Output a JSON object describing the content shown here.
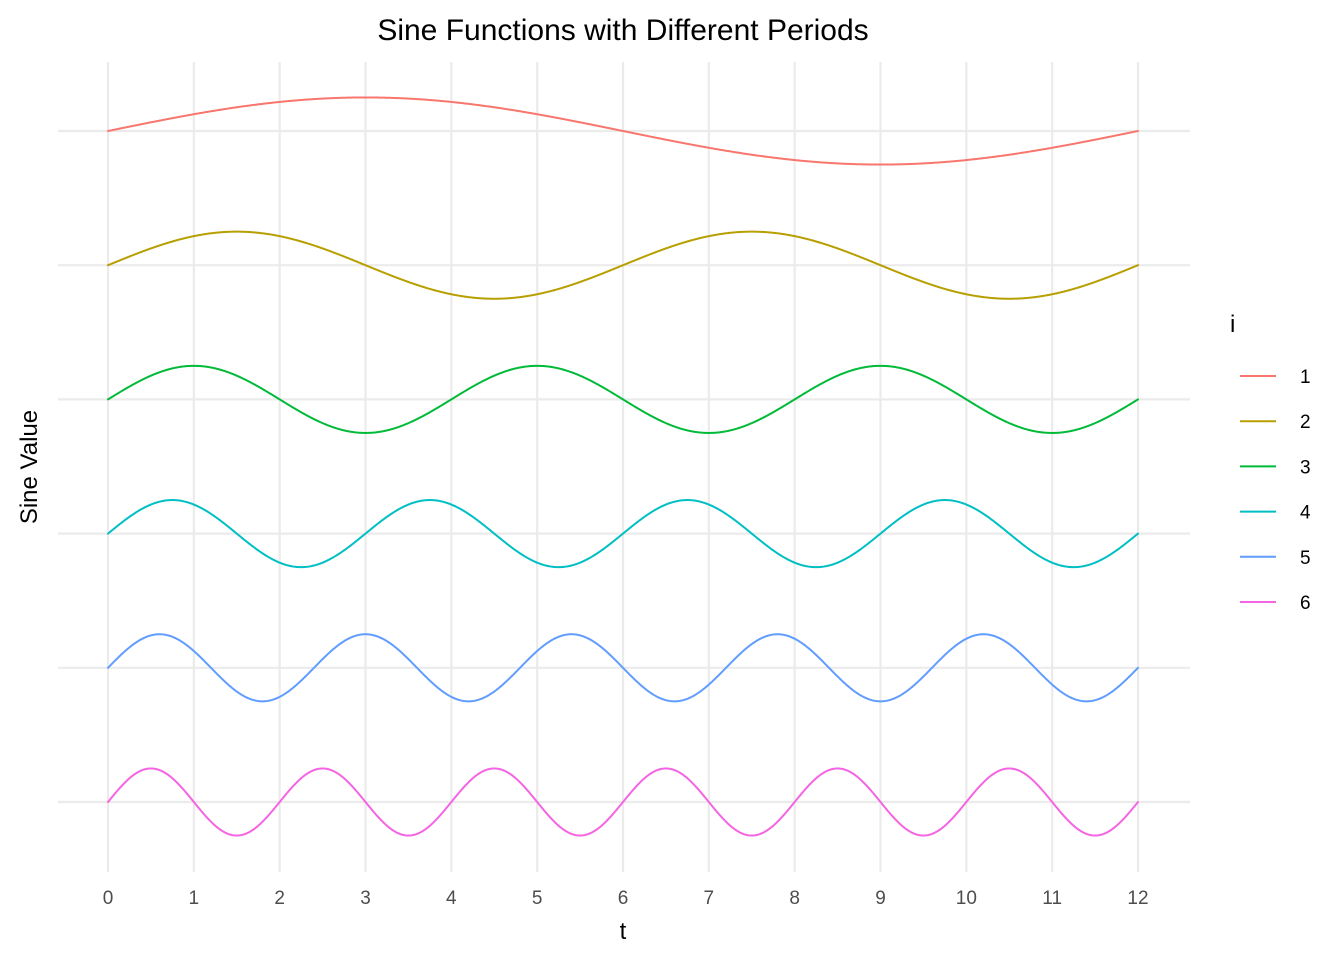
{
  "chart_data": {
    "type": "line",
    "title": "Sine Functions with Different Periods",
    "xlabel": "t",
    "ylabel": "Sine Value",
    "xlim": [
      0,
      12
    ],
    "x_ticks": [
      0,
      1,
      2,
      3,
      4,
      5,
      6,
      7,
      8,
      9,
      10,
      11,
      12
    ],
    "y_tick_labels_shown": false,
    "grid": true,
    "legend": {
      "title": "i",
      "position": "right"
    },
    "series": [
      {
        "name": "1",
        "color": "#F8766D",
        "period": 12,
        "amplitude": 0.25,
        "offset": 5
      },
      {
        "name": "2",
        "color": "#B79F00",
        "period": 6,
        "amplitude": 0.25,
        "offset": 4
      },
      {
        "name": "3",
        "color": "#00BA38",
        "period": 4,
        "amplitude": 0.25,
        "offset": 3
      },
      {
        "name": "4",
        "color": "#00BFC4",
        "period": 3,
        "amplitude": 0.25,
        "offset": 2
      },
      {
        "name": "5",
        "color": "#619CFF",
        "period": 2.4,
        "amplitude": 0.25,
        "offset": 1
      },
      {
        "name": "6",
        "color": "#F564E3",
        "period": 2,
        "amplitude": 0.25,
        "offset": 0
      }
    ]
  }
}
